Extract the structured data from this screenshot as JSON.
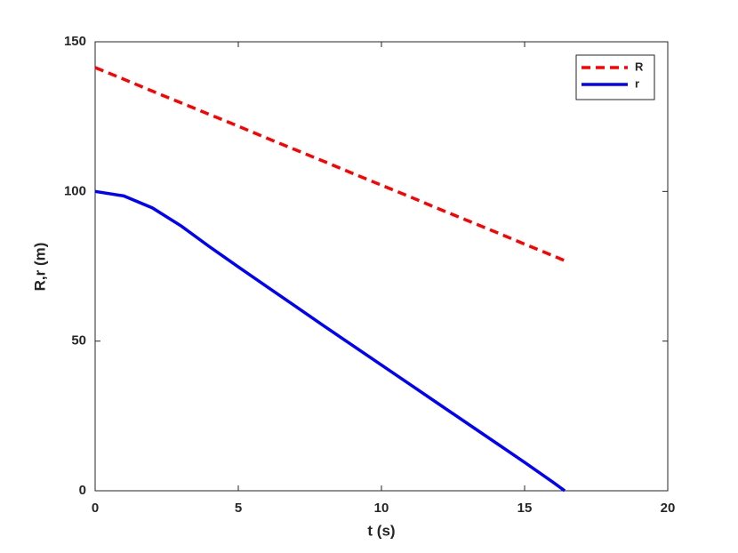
{
  "chart_data": {
    "type": "line",
    "xlabel": "t (s)",
    "ylabel": "R,r (m)",
    "x": [
      0,
      1,
      2,
      3,
      4,
      5,
      6,
      7,
      8,
      9,
      10,
      11,
      12,
      13,
      14,
      15,
      16,
      16.4
    ],
    "series": [
      {
        "name": "R",
        "color": "#ff0000",
        "dash": true,
        "values": [
          141.4,
          137.5,
          133.5,
          129.6,
          125.7,
          121.8,
          117.8,
          113.9,
          110,
          106,
          102.1,
          98.2,
          94.2,
          90.3,
          86.4,
          82.4,
          78.5,
          76.9
        ]
      },
      {
        "name": "r",
        "color": "#0000ff",
        "dash": false,
        "values": [
          100,
          98.5,
          94.5,
          88.5,
          81.5,
          74.8,
          68.2,
          61.6,
          55.0,
          48.5,
          42.0,
          35.5,
          29.0,
          22.5,
          16.0,
          9.5,
          2.8,
          0
        ]
      }
    ],
    "xlim": [
      0,
      20
    ],
    "xticks": [
      0,
      5,
      10,
      15,
      20
    ],
    "ylim": [
      0,
      150
    ],
    "yticks": [
      0,
      50,
      100,
      150
    ],
    "legend": "top-right"
  }
}
